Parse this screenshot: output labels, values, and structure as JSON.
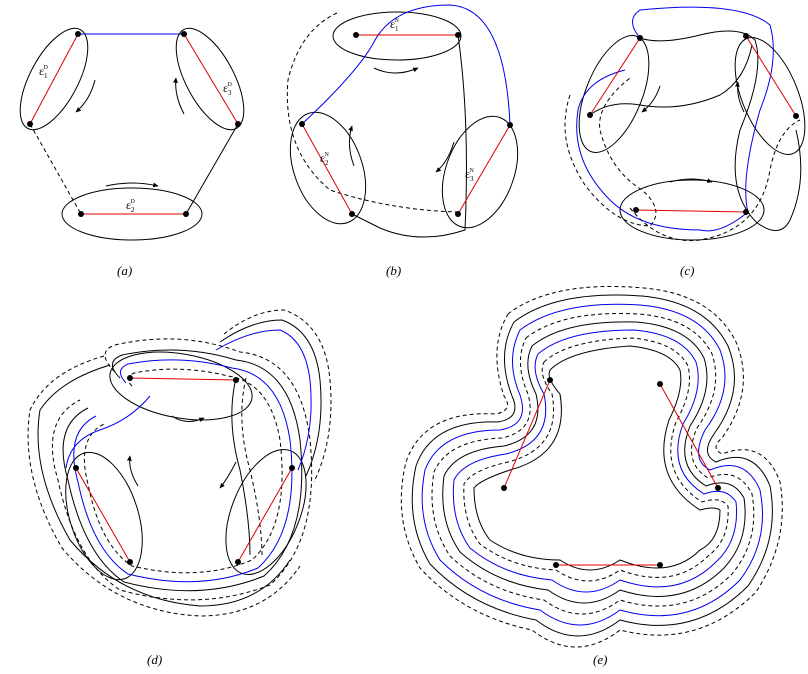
{
  "panels": [
    {
      "caption": "(a)",
      "labels": [
        {
          "main": "ε",
          "sub": "1",
          "sup": "D"
        },
        {
          "main": "ε",
          "sub": "3",
          "sup": "D"
        },
        {
          "main": "ε",
          "sub": "2",
          "sup": "D"
        }
      ]
    },
    {
      "caption": "(b)",
      "labels": [
        {
          "main": "ε",
          "sub": "1",
          "sup": "N"
        },
        {
          "main": "ε",
          "sub": "2",
          "sup": "N"
        },
        {
          "main": "ε",
          "sub": "3",
          "sup": "N"
        }
      ]
    },
    {
      "caption": "(c)"
    },
    {
      "caption": "(d)"
    },
    {
      "caption": "(e)"
    }
  ],
  "colors": {
    "line": "#000000",
    "blue": "#0000ee",
    "red": "#e00000"
  }
}
